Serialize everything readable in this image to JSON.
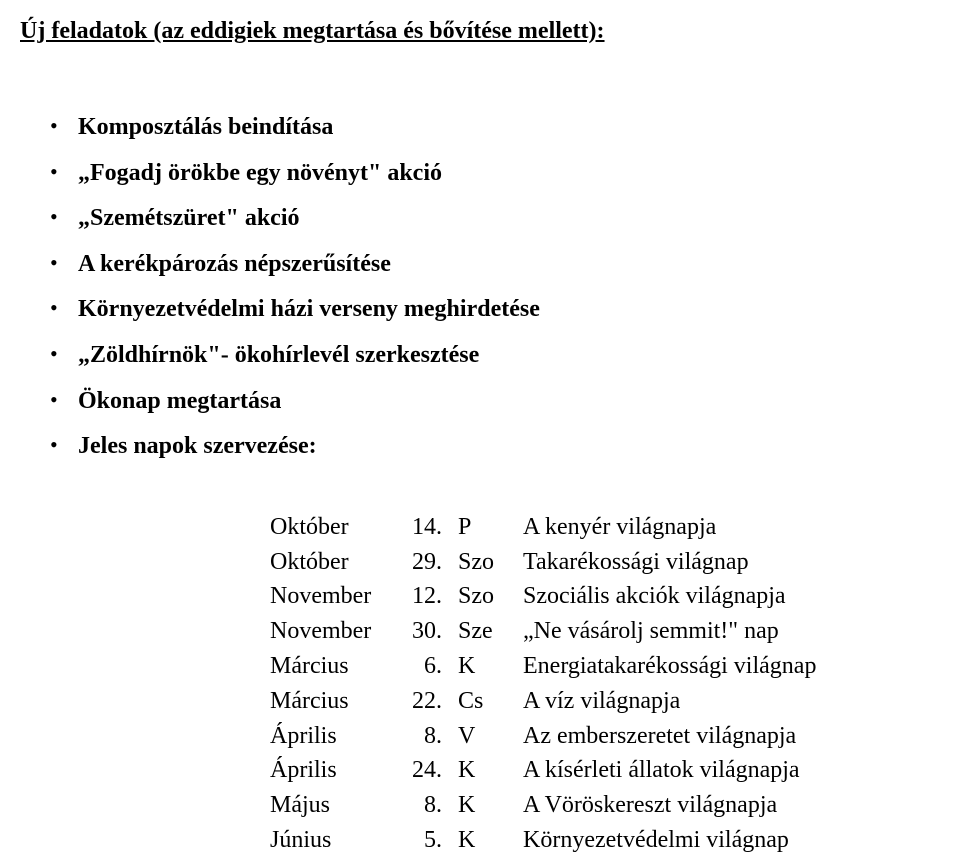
{
  "heading": "Új feladatok (az eddigiek megtartása és bővítése mellett):",
  "bullets": [
    "Komposztálás beindítása",
    "„Fogadj örökbe egy növényt\" akció",
    "„Szemétszüret\" akció",
    "A kerékpározás népszerűsítése",
    "Környezetvédelmi házi verseny meghirdetése",
    "„Zöldhírnök\"- ökohírlevél szerkesztése",
    "Ökonap megtartása",
    "Jeles napok szervezése:"
  ],
  "dates": [
    {
      "month": "Október",
      "daynum": "14.",
      "daylabel": "P",
      "desc": "A kenyér világnapja"
    },
    {
      "month": "Október",
      "daynum": "29.",
      "daylabel": "Szo",
      "desc": "Takarékossági világnap"
    },
    {
      "month": "November",
      "daynum": "12.",
      "daylabel": "Szo",
      "desc": "Szociális akciók világnapja"
    },
    {
      "month": "November",
      "daynum": "30.",
      "daylabel": "Sze",
      "desc": "„Ne vásárolj semmit!\" nap"
    },
    {
      "month": "Március",
      "daynum": "6.",
      "daylabel": "K",
      "desc": "Energiatakarékossági világnap"
    },
    {
      "month": "Március",
      "daynum": "22.",
      "daylabel": "Cs",
      "desc": "A víz világnapja"
    },
    {
      "month": "Április",
      "daynum": "8.",
      "daylabel": "V",
      "desc": "Az emberszeretet világnapja"
    },
    {
      "month": "Április",
      "daynum": "24.",
      "daylabel": "K",
      "desc": "A kísérleti állatok világnapja"
    },
    {
      "month": "Május",
      "daynum": "8.",
      "daylabel": "K",
      "desc": "A Vöröskereszt világnapja"
    },
    {
      "month": "Június",
      "daynum": "5.",
      "daylabel": "K",
      "desc": "Környezetvédelmi világnap"
    }
  ]
}
